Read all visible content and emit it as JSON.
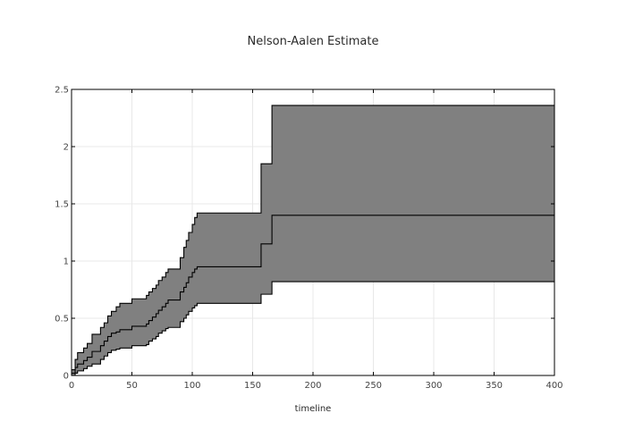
{
  "chart_data": {
    "type": "area",
    "title": "Nelson-Aalen Estimate",
    "xlabel": "timeline",
    "ylabel": "",
    "xlim": [
      0,
      400
    ],
    "ylim": [
      0,
      2.5
    ],
    "x_ticks": [
      0,
      50,
      100,
      150,
      200,
      250,
      300,
      350,
      400
    ],
    "x_tick_labels": [
      "0",
      "50",
      "100",
      "150",
      "200",
      "250",
      "300",
      "350",
      "400"
    ],
    "y_ticks": [
      0,
      0.5,
      1,
      1.5,
      2,
      2.5
    ],
    "y_tick_labels": [
      "0",
      "0.5",
      "1",
      "1.5",
      "2",
      "2.5"
    ],
    "grid": true,
    "legend": false,
    "colors": {
      "band_fill": "#808080",
      "line": "#000000",
      "grid": "#e8e8e8",
      "frame": "#000000"
    },
    "series": [
      {
        "role": "upper",
        "step": "post",
        "x": [
          0,
          3,
          5,
          10,
          13,
          17,
          24,
          27,
          30,
          33,
          37,
          40,
          50,
          62,
          64,
          67,
          70,
          72,
          75,
          78,
          80,
          90,
          93,
          95,
          97,
          100,
          102,
          104,
          157,
          166,
          168,
          400
        ],
        "y": [
          0.05,
          0.14,
          0.2,
          0.24,
          0.28,
          0.36,
          0.42,
          0.46,
          0.52,
          0.56,
          0.6,
          0.63,
          0.67,
          0.7,
          0.73,
          0.76,
          0.79,
          0.83,
          0.86,
          0.9,
          0.93,
          1.03,
          1.12,
          1.18,
          1.25,
          1.32,
          1.38,
          1.42,
          1.85,
          2.36,
          2.36,
          2.36
        ]
      },
      {
        "role": "estimate",
        "step": "post",
        "x": [
          0,
          3,
          5,
          10,
          13,
          17,
          24,
          27,
          30,
          33,
          37,
          40,
          50,
          62,
          64,
          67,
          70,
          72,
          75,
          78,
          80,
          90,
          93,
          95,
          97,
          100,
          102,
          104,
          157,
          166,
          168,
          400
        ],
        "y": [
          0.02,
          0.07,
          0.1,
          0.13,
          0.16,
          0.21,
          0.26,
          0.3,
          0.34,
          0.37,
          0.38,
          0.4,
          0.43,
          0.45,
          0.48,
          0.51,
          0.54,
          0.57,
          0.6,
          0.63,
          0.66,
          0.73,
          0.77,
          0.81,
          0.86,
          0.9,
          0.93,
          0.95,
          1.15,
          1.4,
          1.4,
          1.4
        ]
      },
      {
        "role": "lower",
        "step": "post",
        "x": [
          0,
          3,
          5,
          10,
          13,
          17,
          24,
          27,
          30,
          33,
          37,
          40,
          50,
          62,
          64,
          67,
          70,
          72,
          75,
          78,
          80,
          90,
          93,
          95,
          97,
          100,
          102,
          104,
          157,
          166,
          168,
          400
        ],
        "y": [
          0.0,
          0.02,
          0.04,
          0.06,
          0.08,
          0.1,
          0.14,
          0.17,
          0.2,
          0.22,
          0.23,
          0.24,
          0.26,
          0.27,
          0.3,
          0.32,
          0.34,
          0.37,
          0.39,
          0.41,
          0.42,
          0.47,
          0.5,
          0.53,
          0.56,
          0.59,
          0.61,
          0.63,
          0.71,
          0.82,
          0.82,
          0.82
        ]
      }
    ]
  }
}
